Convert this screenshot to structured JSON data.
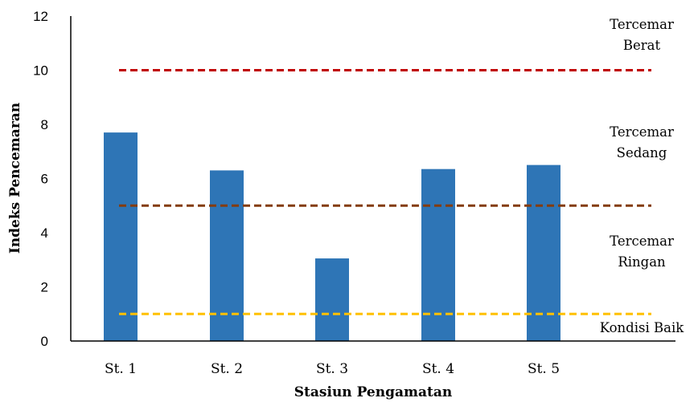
{
  "chart_data": {
    "type": "bar",
    "xlabel": "Stasiun Pengamatan",
    "ylabel": "Indeks Pencemaran",
    "ylim": [
      0,
      12
    ],
    "yticks": [
      "0",
      "2",
      "4",
      "6",
      "8",
      "10",
      "12"
    ],
    "categories": [
      "St. 1",
      "St. 2",
      "St. 3",
      "St. 4",
      "St. 5"
    ],
    "values": [
      7.7,
      6.3,
      3.05,
      6.35,
      6.5
    ],
    "bar_color": "#2E75B6",
    "grid": false,
    "thresholds": [
      {
        "value": 10,
        "color": "#C00000",
        "style": "dashed"
      },
      {
        "value": 5,
        "color": "#843C0C",
        "style": "dashed"
      },
      {
        "value": 1,
        "color": "#FFC000",
        "style": "dashed"
      }
    ],
    "zone_labels": [
      {
        "lines": [
          "Tercemar",
          "Berat"
        ]
      },
      {
        "lines": [
          "Tercemar",
          "Sedang"
        ]
      },
      {
        "lines": [
          "Tercemar",
          "Ringan"
        ]
      },
      {
        "lines": [
          "Kondisi Baik"
        ]
      }
    ]
  }
}
